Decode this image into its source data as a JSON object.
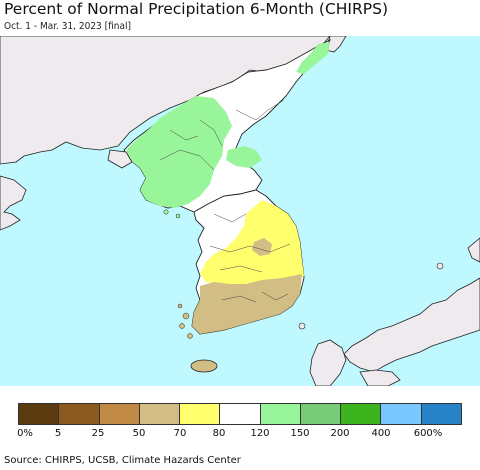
{
  "header": {
    "title": "Percent of Normal Precipitation 6-Month (CHIRPS)",
    "subtitle": "Oct. 1 - Mar. 31, 2023 [final]"
  },
  "legend": {
    "colors": [
      "#5a3c10",
      "#8c5a1e",
      "#c08a45",
      "#d2bd85",
      "#ffff6e",
      "#ffffff",
      "#99f599",
      "#78cc78",
      "#3cb41e",
      "#78c8ff",
      "#2882c8"
    ],
    "ticks": [
      "0%",
      "5",
      "25",
      "50",
      "70",
      "80",
      "120",
      "150",
      "200",
      "400",
      "600%"
    ]
  },
  "footer": {
    "source": "Source: CHIRPS, UCSB, Climate Hazards Center"
  },
  "colors": {
    "ocean": "#bff9ff",
    "land_outside": "#eeeaee",
    "normal": "#ffffff",
    "wet_light": "#99f599",
    "dry_yellow": "#ffff6e",
    "dry_tan": "#d2bd85"
  }
}
